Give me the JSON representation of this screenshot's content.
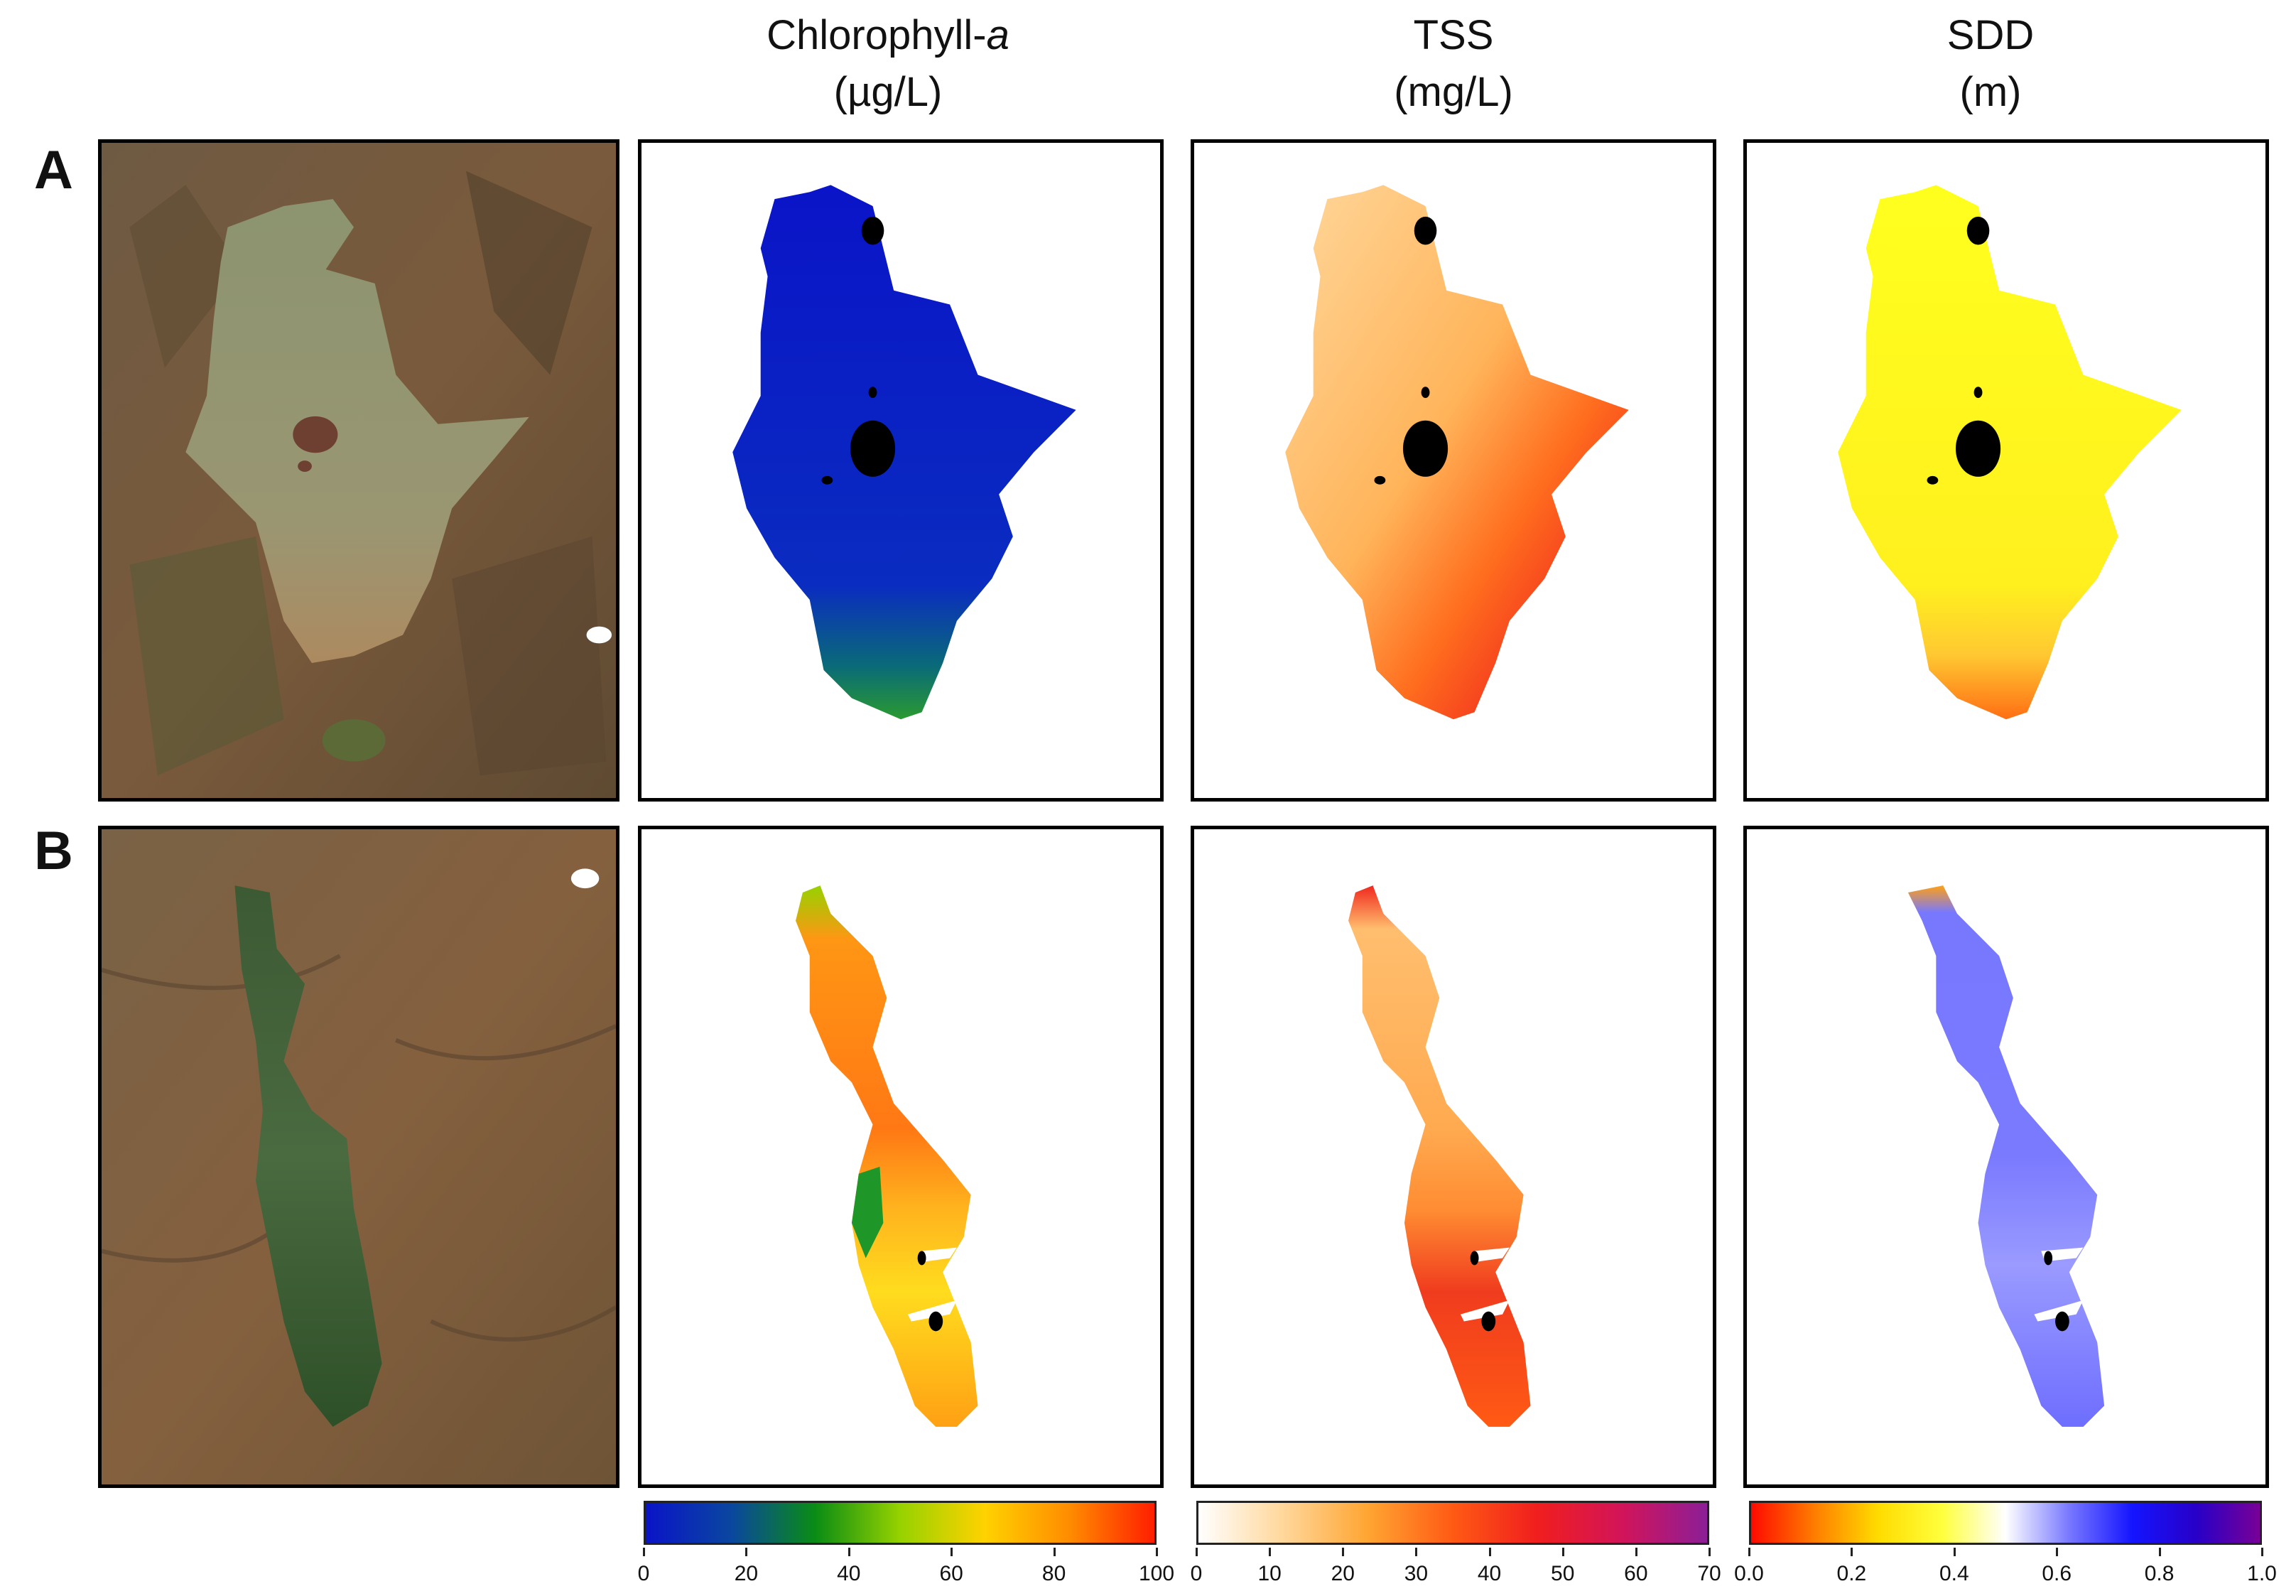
{
  "columns": {
    "chl": {
      "line1": "Chlorophyll-",
      "italic": "a",
      "line2": "(µg/L)"
    },
    "tss": {
      "line1": "TSS",
      "line2": "(mg/L)"
    },
    "sdd": {
      "line1": "SDD",
      "line2": "(m)"
    }
  },
  "rows": {
    "a": "A",
    "b": "B"
  },
  "colorbars": {
    "chl": {
      "ticks": [
        "0",
        "20",
        "40",
        "60",
        "80",
        "100"
      ],
      "colors": [
        "#0a14c8",
        "#0a46a0",
        "#0a8c14",
        "#96d200",
        "#ffd200",
        "#ff8c00",
        "#ff1e00"
      ]
    },
    "tss": {
      "ticks": [
        "0",
        "10",
        "20",
        "30",
        "40",
        "50",
        "60",
        "70"
      ],
      "colors": [
        "#ffffff",
        "#ffd79b",
        "#ffa532",
        "#ff5a14",
        "#f01e1e",
        "#d2145a",
        "#8c1e96"
      ]
    },
    "sdd": {
      "ticks": [
        "0.0",
        "0.2",
        "0.4",
        "0.6",
        "0.8",
        "1.0"
      ],
      "colors": [
        "#ff0a00",
        "#ff7d00",
        "#ffdc00",
        "#ffff3c",
        "#ffffff",
        "#7878ff",
        "#1414ff",
        "#2800c8",
        "#780096"
      ]
    }
  },
  "map_colors": {
    "chl_a": "#0a1ed2",
    "tss_a": "#ffc882",
    "sdd_a": "#ffff1e",
    "chl_b": "#ff7d14",
    "tss_b": "#ffa550",
    "sdd_b": "#7878ff",
    "mask": "#000000"
  }
}
